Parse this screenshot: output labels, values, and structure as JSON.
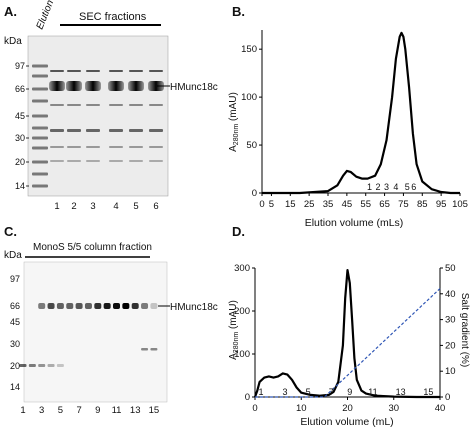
{
  "panelA": {
    "letter": "A.",
    "kda": "kDa",
    "elution": "Elution",
    "sec": "SEC fractions",
    "band_label": "HMunc18c",
    "markers": [
      "97",
      "66",
      "45",
      "30",
      "20",
      "14"
    ],
    "lanes": [
      "1",
      "2",
      "3",
      "4",
      "5",
      "6"
    ]
  },
  "panelC": {
    "letter": "C.",
    "kda": "kDa",
    "header": "MonoS 5/5 column fraction",
    "band_label": "HMunc18c",
    "markers": [
      "97",
      "66",
      "45",
      "30",
      "20",
      "14"
    ],
    "lanes": [
      "1",
      "3",
      "5",
      "7",
      "9",
      "11",
      "13",
      "15"
    ]
  },
  "chart_data": [
    {
      "type": "line",
      "panel": "B.",
      "ylabel_main": "A",
      "ylabel_sub": "280nm",
      "ylabel_tail": " (mAU)",
      "xlabel": "Elution volume (mLs)",
      "xlim": [
        0,
        105
      ],
      "ylim": [
        0,
        170
      ],
      "xticks": [
        "0",
        "5",
        "15",
        "25",
        "35",
        "45",
        "55",
        "65",
        "75",
        "85",
        "95",
        "105"
      ],
      "yticks": [
        "0",
        "50",
        "100",
        "150"
      ],
      "fraction_labels": [
        "1",
        "2",
        "3",
        "4",
        "5",
        "6"
      ],
      "fraction_x": [
        57,
        61.5,
        66,
        71,
        77,
        80.5
      ],
      "series": [
        {
          "x": [
            0,
            20,
            35,
            40,
            43,
            45,
            47,
            50,
            53,
            56,
            60,
            63,
            66,
            69,
            71,
            73,
            74,
            75,
            76,
            78,
            80,
            82,
            85,
            90,
            95,
            100,
            105
          ],
          "y": [
            0,
            0,
            2,
            8,
            18,
            23,
            22,
            17,
            15,
            15,
            18,
            30,
            55,
            100,
            140,
            163,
            167,
            163,
            150,
            110,
            62,
            30,
            12,
            4,
            1,
            0,
            0
          ],
          "color": "#000000"
        }
      ]
    },
    {
      "type": "line",
      "panel": "D.",
      "ylabel_main": "A",
      "ylabel_sub": "280nm",
      "ylabel_tail": " (mAU)",
      "y2label": "Salt gradient (%)",
      "xlabel": "Elution volume (mL)",
      "xlim": [
        0,
        40
      ],
      "ylim": [
        0,
        300
      ],
      "y2lim": [
        0,
        50
      ],
      "xticks": [
        "0",
        "10",
        "20",
        "30",
        "40"
      ],
      "yticks": [
        "0",
        "100",
        "200",
        "300"
      ],
      "y2ticks": [
        "0",
        "10",
        "20",
        "30",
        "40",
        "50"
      ],
      "fraction_labels": [
        "1",
        "3",
        "5",
        "7",
        "9",
        "11",
        "13",
        "15"
      ],
      "fraction_x": [
        1.3,
        6.5,
        11.5,
        16.5,
        20.5,
        25.5,
        31.5,
        37.5
      ],
      "series": [
        {
          "x": [
            0,
            0.5,
            1,
            2,
            3,
            4,
            5,
            6,
            7,
            8,
            9,
            10,
            12,
            14,
            16,
            17,
            18,
            19,
            19.5,
            20,
            20.5,
            21,
            21.5,
            22,
            23,
            24,
            26,
            30,
            35,
            40
          ],
          "y": [
            0,
            15,
            35,
            45,
            48,
            45,
            48,
            55,
            52,
            40,
            22,
            10,
            5,
            3,
            5,
            12,
            35,
            120,
            230,
            295,
            265,
            180,
            90,
            40,
            15,
            8,
            3,
            1,
            0,
            0
          ],
          "color": "#000000",
          "axis": "left"
        },
        {
          "x": [
            0,
            15,
            40
          ],
          "y": [
            0,
            0,
            42
          ],
          "color": "#2f56b5",
          "dashed": true,
          "axis": "right"
        }
      ]
    }
  ]
}
